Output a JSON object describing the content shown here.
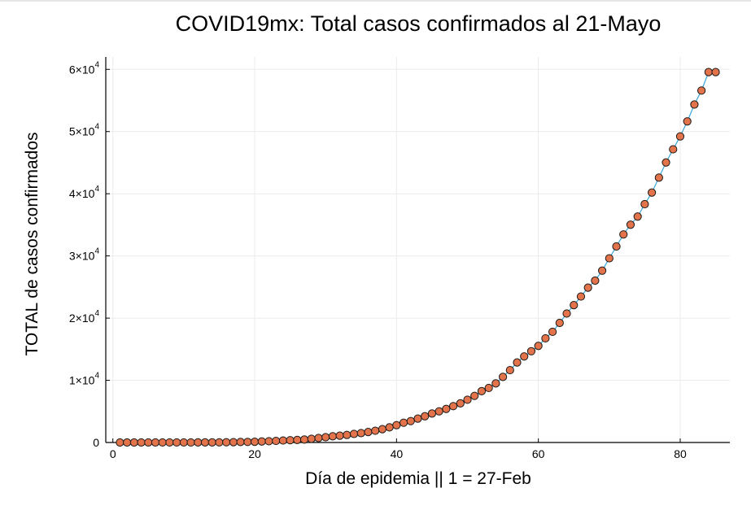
{
  "chart_data": {
    "type": "scatter",
    "title": "COVID19mx: Total casos confirmados al 21-Mayo",
    "xlabel": "Día de epidemia || 1 = 27-Feb",
    "ylabel": "TOTAL de casos confirmados",
    "xlim": [
      -1,
      87
    ],
    "ylim": [
      0,
      62000
    ],
    "x_ticks": [
      0,
      20,
      40,
      60,
      80
    ],
    "x_tick_labels": [
      "0",
      "20",
      "40",
      "60",
      "80"
    ],
    "y_ticks": [
      0,
      10000,
      20000,
      30000,
      40000,
      50000,
      60000
    ],
    "y_tick_labels": [
      {
        "mantissa": "0",
        "exp": ""
      },
      {
        "mantissa": "1×10",
        "exp": "4"
      },
      {
        "mantissa": "2×10",
        "exp": "4"
      },
      {
        "mantissa": "3×10",
        "exp": "4"
      },
      {
        "mantissa": "4×10",
        "exp": "4"
      },
      {
        "mantissa": "5×10",
        "exp": "4"
      },
      {
        "mantissa": "6×10",
        "exp": "4"
      }
    ],
    "grid": true,
    "legend": "none",
    "line_color": "#3aa6d9",
    "marker_color": "#e2734a",
    "marker_edge": "#1a1a1a",
    "x": [
      1,
      2,
      3,
      4,
      5,
      6,
      7,
      8,
      9,
      10,
      11,
      12,
      13,
      14,
      15,
      16,
      17,
      18,
      19,
      20,
      21,
      22,
      23,
      24,
      25,
      26,
      27,
      28,
      29,
      30,
      31,
      32,
      33,
      34,
      35,
      36,
      37,
      38,
      39,
      40,
      41,
      42,
      43,
      44,
      45,
      46,
      47,
      48,
      49,
      50,
      51,
      52,
      53,
      54,
      55,
      56,
      57,
      58,
      59,
      60,
      61,
      62,
      63,
      64,
      65,
      66,
      67,
      68,
      69,
      70,
      71,
      72,
      73,
      74,
      75,
      76,
      77,
      78,
      79,
      80,
      81,
      82,
      83,
      84,
      85
    ],
    "y": [
      1,
      2,
      4,
      5,
      5,
      5,
      7,
      7,
      7,
      7,
      11,
      12,
      12,
      16,
      26,
      41,
      53,
      82,
      93,
      118,
      164,
      203,
      251,
      316,
      367,
      405,
      475,
      585,
      717,
      848,
      993,
      1094,
      1215,
      1378,
      1510,
      1688,
      1890,
      2143,
      2439,
      2785,
      3181,
      3441,
      3844,
      4219,
      4661,
      5014,
      5399,
      5847,
      6297,
      6875,
      7497,
      8261,
      8772,
      9501,
      10544,
      11633,
      12872,
      13842,
      14677,
      15529,
      16752,
      17799,
      19224,
      20739,
      22088,
      23471,
      24905,
      26025,
      27634,
      29616,
      31522,
      33460,
      35022,
      36327,
      38324,
      40186,
      42595,
      45032,
      47144,
      49219,
      51633,
      54346,
      56594,
      59567,
      59567
    ]
  }
}
